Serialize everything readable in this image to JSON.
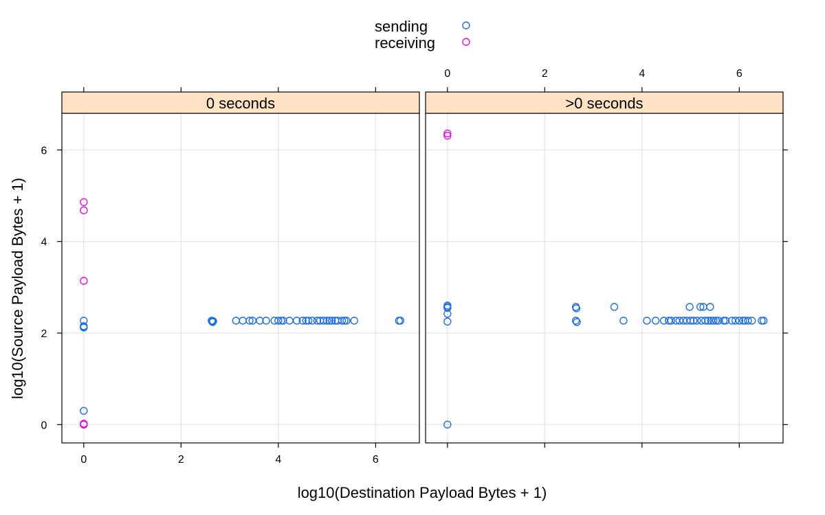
{
  "chart_data": {
    "type": "scatter",
    "layout": "lattice-xyplot",
    "xlabel": "log10(Destination Payload Bytes + 1)",
    "ylabel": "log10(Source Payload Bytes + 1)",
    "xlim": [
      -0.45,
      6.9
    ],
    "ylim": [
      -0.4,
      6.8
    ],
    "x_ticks": [
      0,
      2,
      4,
      6
    ],
    "y_ticks": [
      0,
      2,
      4,
      6
    ],
    "grid": true,
    "legend": {
      "placement": "top",
      "entries": [
        {
          "name": "sending",
          "color": "#1e6ee6"
        },
        {
          "name": "receiving",
          "color": "#e60ee6"
        }
      ]
    },
    "colors": {
      "sending": "#1e6ee6",
      "receiving": "#e60ee6",
      "strip_fill": "#ffe3c4",
      "grid": "#e4e4e4"
    },
    "panels": [
      {
        "strip": "0 seconds",
        "series": [
          {
            "name": "sending",
            "points": [
              [
                0,
                2.27
              ],
              [
                0,
                2.15
              ],
              [
                0,
                2.13
              ],
              [
                0,
                2.12
              ],
              [
                0,
                0.3
              ],
              [
                0,
                0
              ],
              [
                2.63,
                2.27
              ],
              [
                2.64,
                2.25
              ],
              [
                2.65,
                2.24
              ],
              [
                2.66,
                2.26
              ],
              [
                3.13,
                2.27
              ],
              [
                3.27,
                2.27
              ],
              [
                3.41,
                2.27
              ],
              [
                3.47,
                2.27
              ],
              [
                3.62,
                2.27
              ],
              [
                3.75,
                2.27
              ],
              [
                3.92,
                2.27
              ],
              [
                4.0,
                2.27
              ],
              [
                4.06,
                2.27
              ],
              [
                4.1,
                2.27
              ],
              [
                4.23,
                2.27
              ],
              [
                4.38,
                2.27
              ],
              [
                4.5,
                2.27
              ],
              [
                4.57,
                2.27
              ],
              [
                4.62,
                2.27
              ],
              [
                4.7,
                2.27
              ],
              [
                4.8,
                2.27
              ],
              [
                4.86,
                2.27
              ],
              [
                4.93,
                2.27
              ],
              [
                5.0,
                2.27
              ],
              [
                5.05,
                2.27
              ],
              [
                5.1,
                2.27
              ],
              [
                5.17,
                2.27
              ],
              [
                5.22,
                2.27
              ],
              [
                5.31,
                2.27
              ],
              [
                5.36,
                2.27
              ],
              [
                5.4,
                2.27
              ],
              [
                5.56,
                2.27
              ],
              [
                6.48,
                2.27
              ],
              [
                6.51,
                2.27
              ]
            ]
          },
          {
            "name": "receiving",
            "points": [
              [
                0,
                4.86
              ],
              [
                0,
                4.68
              ],
              [
                0,
                3.14
              ],
              [
                0,
                0.02
              ],
              [
                0,
                0
              ]
            ]
          }
        ]
      },
      {
        "strip": ">0 seconds",
        "series": [
          {
            "name": "sending",
            "points": [
              [
                0,
                2.6
              ],
              [
                0,
                2.57
              ],
              [
                0,
                2.55
              ],
              [
                0,
                2.42
              ],
              [
                0,
                2.25
              ],
              [
                0,
                0
              ],
              [
                2.64,
                2.57
              ],
              [
                2.65,
                2.54
              ],
              [
                2.64,
                2.27
              ],
              [
                2.66,
                2.24
              ],
              [
                3.43,
                2.57
              ],
              [
                3.62,
                2.27
              ],
              [
                4.1,
                2.27
              ],
              [
                4.28,
                2.27
              ],
              [
                4.45,
                2.27
              ],
              [
                4.55,
                2.27
              ],
              [
                4.6,
                2.27
              ],
              [
                4.7,
                2.27
              ],
              [
                4.77,
                2.27
              ],
              [
                4.85,
                2.27
              ],
              [
                4.92,
                2.27
              ],
              [
                4.98,
                2.57
              ],
              [
                5.0,
                2.27
              ],
              [
                5.06,
                2.27
              ],
              [
                5.13,
                2.27
              ],
              [
                5.2,
                2.57
              ],
              [
                5.22,
                2.27
              ],
              [
                5.26,
                2.57
              ],
              [
                5.3,
                2.27
              ],
              [
                5.36,
                2.27
              ],
              [
                5.4,
                2.57
              ],
              [
                5.42,
                2.27
              ],
              [
                5.47,
                2.27
              ],
              [
                5.52,
                2.27
              ],
              [
                5.57,
                2.27
              ],
              [
                5.68,
                2.27
              ],
              [
                5.72,
                2.27
              ],
              [
                5.85,
                2.27
              ],
              [
                5.92,
                2.27
              ],
              [
                6.0,
                2.27
              ],
              [
                6.08,
                2.27
              ],
              [
                6.12,
                2.27
              ],
              [
                6.18,
                2.27
              ],
              [
                6.26,
                2.27
              ],
              [
                6.46,
                2.27
              ],
              [
                6.5,
                2.27
              ]
            ]
          },
          {
            "name": "receiving",
            "points": [
              [
                0,
                6.36
              ],
              [
                0,
                6.31
              ]
            ]
          }
        ]
      }
    ]
  }
}
